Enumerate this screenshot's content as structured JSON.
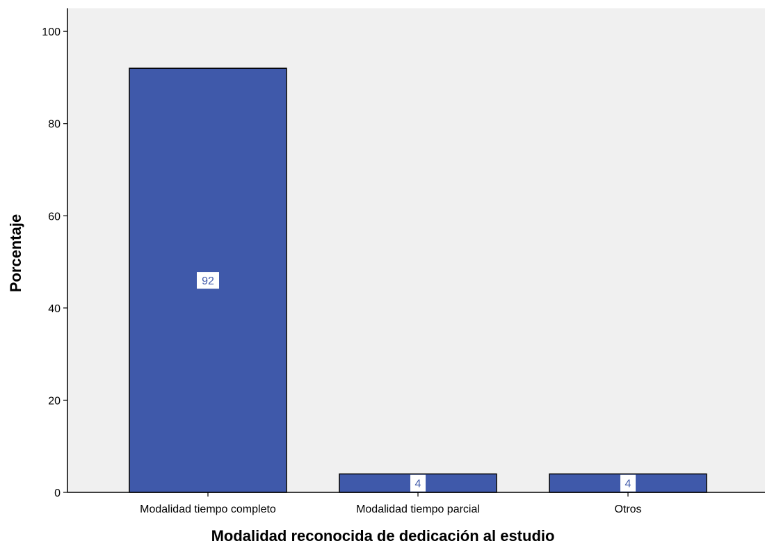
{
  "chart_data": {
    "type": "bar",
    "categories": [
      "Modalidad tiempo completo",
      "Modalidad tiempo parcial",
      "Otros"
    ],
    "values": [
      92,
      4,
      4
    ],
    "data_labels": [
      "92",
      "4",
      "4"
    ],
    "xlabel": "Modalidad reconocida de dedicación al estudio",
    "ylabel": "Porcentaje",
    "ylim": [
      0,
      105
    ],
    "yticks": [
      0,
      20,
      40,
      60,
      80,
      100
    ],
    "ytick_labels": [
      "0",
      "20",
      "40",
      "60",
      "80",
      "100"
    ],
    "grid": false,
    "colors": {
      "bar_fill": "#3f59aa",
      "bar_stroke": "#000000",
      "plot_background": "#f0f0f0",
      "data_label_text": "#3f59aa",
      "data_label_background": "#ffffff"
    }
  }
}
